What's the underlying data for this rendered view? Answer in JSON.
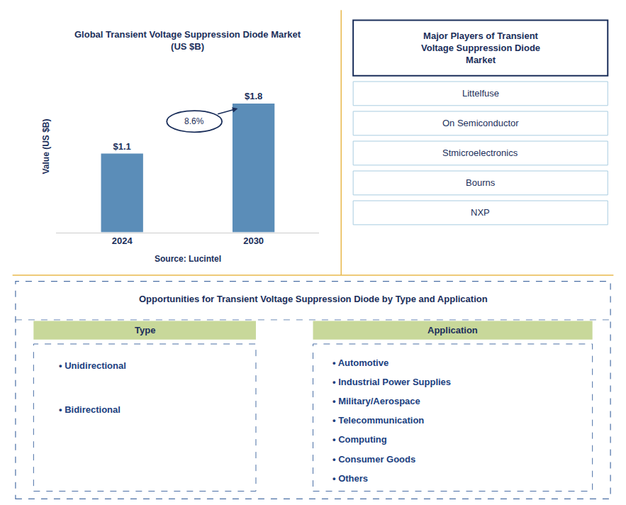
{
  "chart_data": {
    "type": "bar",
    "title": "Global Transient Voltage Suppression Diode Market\n(US $B)",
    "categories": [
      "2024",
      "2030"
    ],
    "values": [
      1.1,
      1.8
    ],
    "value_labels": [
      "$1.1",
      "$1.8"
    ],
    "data_labels": true,
    "color": "#5b8db8",
    "ylabel": "Value (US $B)",
    "ylim": [
      0,
      2.4
    ],
    "tick_labels": "x",
    "grid": false,
    "annotations": [
      "8.6%"
    ],
    "source": "Source: Lucintel"
  },
  "panels": [
    {
      "title": "Major Players of Transient\nVoltage Suppression Diode\nMarket",
      "items": [
        "Littelfuse",
        "On Semiconductor",
        "Stmicroelectronics",
        "Bourns",
        "NXP"
      ]
    },
    {
      "title": "Opportunities for Transient Voltage Suppression Diode by Type and Application",
      "columns": [
        {
          "header": "Type",
          "items": [
            "• Unidirectional",
            "• Bidirectional"
          ]
        },
        {
          "header": "Application",
          "items": [
            "• Automotive",
            "• Industrial Power Supplies",
            "• Military/Aerospace",
            "• Telecommunication",
            "• Computing",
            "• Consumer Goods",
            "• Others"
          ]
        }
      ]
    }
  ]
}
